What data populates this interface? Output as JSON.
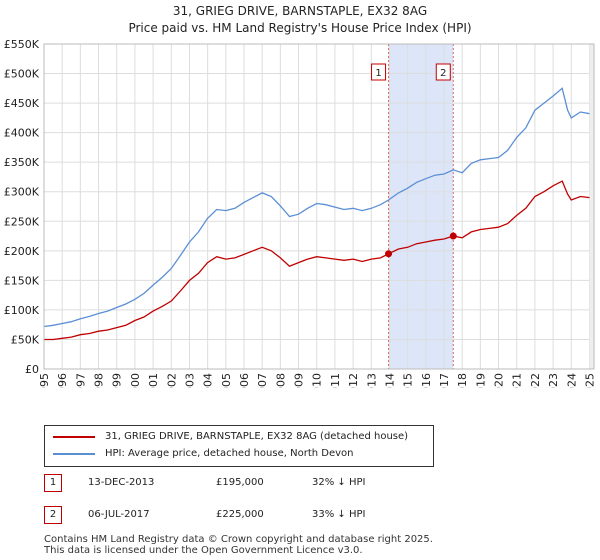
{
  "title_line1": "31, GRIEG DRIVE, BARNSTAPLE, EX32 8AG",
  "title_line2": "Price paid vs. HM Land Registry's House Price Index (HPI)",
  "chart_data": {
    "type": "line",
    "title": "31, GRIEG DRIVE, BARNSTAPLE, EX32 8AG — Price paid vs. HM Land Registry's House Price Index (HPI)",
    "xlabel": "",
    "ylabel": "",
    "xlim": [
      1995,
      2025.25
    ],
    "ylim": [
      0,
      550000
    ],
    "x_ticks": [
      1995,
      1996,
      1997,
      1998,
      1999,
      2000,
      2001,
      2002,
      2003,
      2004,
      2005,
      2006,
      2007,
      2008,
      2009,
      2010,
      2011,
      2012,
      2013,
      2014,
      2015,
      2016,
      2017,
      2018,
      2019,
      2020,
      2021,
      2022,
      2023,
      2024,
      2025
    ],
    "x_tick_labels": [
      "1995",
      "1996",
      "1997",
      "1998",
      "1999",
      "2000",
      "2001",
      "2002",
      "2003",
      "2004",
      "2005",
      "2006",
      "2007",
      "2008",
      "2009",
      "2010",
      "2011",
      "2012",
      "2013",
      "2014",
      "2015",
      "2016",
      "2017",
      "2018",
      "2019",
      "2020",
      "2021",
      "2022",
      "2023",
      "2024",
      "2025"
    ],
    "y_ticks": [
      0,
      50000,
      100000,
      150000,
      200000,
      250000,
      300000,
      350000,
      400000,
      450000,
      500000,
      550000
    ],
    "y_tick_labels": [
      "£0",
      "£50K",
      "£100K",
      "£150K",
      "£200K",
      "£250K",
      "£300K",
      "£350K",
      "£400K",
      "£450K",
      "£500K",
      "£550K"
    ],
    "grid": true,
    "shaded_range": [
      2013.95,
      2017.51
    ],
    "shade_color": "#dce6f8",
    "series": [
      {
        "name": "31, GRIEG DRIVE, BARNSTAPLE, EX32 8AG (detached house)",
        "color": "#c00000",
        "x": [
          1995,
          1995.5,
          1996,
          1996.5,
          1997,
          1997.5,
          1998,
          1998.5,
          1999,
          1999.5,
          2000,
          2000.5,
          2001,
          2001.5,
          2002,
          2002.5,
          2003,
          2003.5,
          2004,
          2004.5,
          2005,
          2005.5,
          2006,
          2006.5,
          2007,
          2007.5,
          2008,
          2008.5,
          2009,
          2009.5,
          2010,
          2010.5,
          2011,
          2011.5,
          2012,
          2012.5,
          2013,
          2013.5,
          2013.95,
          2014.5,
          2015,
          2015.5,
          2016,
          2016.5,
          2017,
          2017.51,
          2018,
          2018.5,
          2019,
          2019.5,
          2020,
          2020.5,
          2021,
          2021.5,
          2022,
          2022.5,
          2023,
          2023.5,
          2023.8,
          2024,
          2024.5,
          2025
        ],
        "values": [
          50000,
          50000,
          52000,
          54000,
          58000,
          60000,
          64000,
          66000,
          70000,
          74000,
          82000,
          88000,
          98000,
          106000,
          115000,
          132000,
          150000,
          162000,
          180000,
          190000,
          186000,
          188000,
          194000,
          200000,
          206000,
          200000,
          188000,
          174000,
          180000,
          186000,
          190000,
          188000,
          186000,
          184000,
          186000,
          182000,
          186000,
          188000,
          195000,
          203000,
          206000,
          212000,
          215000,
          218000,
          220000,
          225000,
          222000,
          232000,
          236000,
          238000,
          240000,
          246000,
          260000,
          272000,
          292000,
          300000,
          310000,
          318000,
          296000,
          286000,
          292000,
          290000
        ]
      },
      {
        "name": "HPI: Average price, detached house, North Devon",
        "color": "#5b8fd4",
        "x": [
          1995,
          1995.5,
          1996,
          1996.5,
          1997,
          1997.5,
          1998,
          1998.5,
          1999,
          1999.5,
          2000,
          2000.5,
          2001,
          2001.5,
          2002,
          2002.5,
          2003,
          2003.5,
          2004,
          2004.5,
          2005,
          2005.5,
          2006,
          2006.5,
          2007,
          2007.5,
          2008,
          2008.5,
          2009,
          2009.5,
          2010,
          2010.5,
          2011,
          2011.5,
          2012,
          2012.5,
          2013,
          2013.5,
          2013.95,
          2014.5,
          2015,
          2015.5,
          2016,
          2016.5,
          2017,
          2017.51,
          2018,
          2018.5,
          2019,
          2019.5,
          2020,
          2020.5,
          2021,
          2021.5,
          2022,
          2022.5,
          2023,
          2023.5,
          2023.8,
          2024,
          2024.5,
          2025
        ],
        "values": [
          72000,
          74000,
          77000,
          80000,
          85000,
          89000,
          94000,
          98000,
          104000,
          110000,
          118000,
          128000,
          142000,
          155000,
          170000,
          192000,
          215000,
          232000,
          255000,
          270000,
          268000,
          272000,
          282000,
          290000,
          298000,
          292000,
          276000,
          258000,
          262000,
          272000,
          280000,
          278000,
          274000,
          270000,
          272000,
          268000,
          272000,
          278000,
          286000,
          298000,
          306000,
          316000,
          322000,
          328000,
          330000,
          337000,
          332000,
          348000,
          354000,
          356000,
          358000,
          370000,
          392000,
          408000,
          438000,
          450000,
          462000,
          475000,
          438000,
          425000,
          435000,
          432000
        ]
      }
    ],
    "sales": [
      {
        "label": "1",
        "date": 2013.95,
        "value": 195000
      },
      {
        "label": "2",
        "date": 2017.51,
        "value": 225000
      }
    ]
  },
  "legend": {
    "items": [
      {
        "label": "31, GRIEG DRIVE, BARNSTAPLE, EX32 8AG (detached house)",
        "color": "#c00000"
      },
      {
        "label": "HPI: Average price, detached house, North Devon",
        "color": "#5b8fd4"
      }
    ]
  },
  "transactions": [
    {
      "num": "1",
      "date": "13-DEC-2013",
      "price": "£195,000",
      "hpi": "32% ↓ HPI"
    },
    {
      "num": "2",
      "date": "06-JUL-2017",
      "price": "£225,000",
      "hpi": "33% ↓ HPI"
    }
  ],
  "footer": {
    "line1": "Contains HM Land Registry data © Crown copyright and database right 2025.",
    "line2": "This data is licensed under the Open Government Licence v3.0."
  }
}
